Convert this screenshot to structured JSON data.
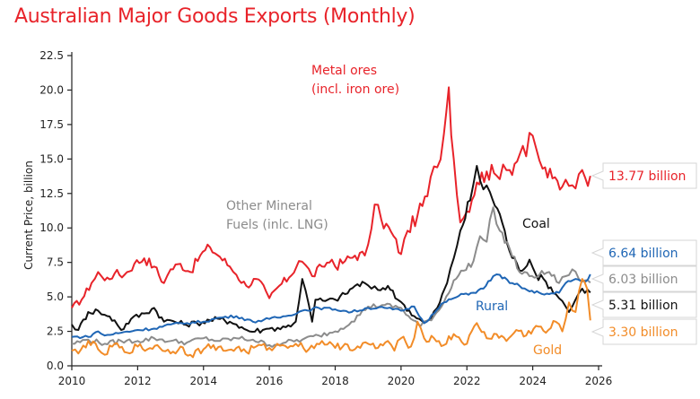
{
  "chart_data": {
    "type": "line",
    "title": "Australian Major Goods Exports (Monthly)",
    "xlabel": "",
    "ylabel": "Current Price, billion",
    "xlim": [
      2010,
      2026
    ],
    "ylim": [
      0,
      22.5
    ],
    "x_ticks": [
      "2010",
      "2012",
      "2014",
      "2016",
      "2018",
      "2020",
      "2022",
      "2024",
      "2026"
    ],
    "y_ticks": [
      "0.0",
      "2.5",
      "5.0",
      "7.5",
      "10.0",
      "12.5",
      "15.0",
      "17.5",
      "20.0",
      "22.5"
    ],
    "grid": false,
    "legend": "none (inline annotations)",
    "series": [
      {
        "name": "Metal ores (incl. iron ore)",
        "color": "#e8232a",
        "end_value_label": "13.77 billion",
        "points": [
          [
            2010.0,
            4.2
          ],
          [
            2010.3,
            4.8
          ],
          [
            2010.6,
            6.0
          ],
          [
            2010.8,
            6.8
          ],
          [
            2011.0,
            6.2
          ],
          [
            2011.3,
            6.7
          ],
          [
            2011.6,
            6.6
          ],
          [
            2011.9,
            7.4
          ],
          [
            2012.2,
            7.8
          ],
          [
            2012.5,
            7.2
          ],
          [
            2012.8,
            6.0
          ],
          [
            2013.0,
            7.0
          ],
          [
            2013.3,
            7.4
          ],
          [
            2013.6,
            6.8
          ],
          [
            2013.9,
            8.0
          ],
          [
            2014.2,
            8.6
          ],
          [
            2014.5,
            7.9
          ],
          [
            2014.8,
            7.2
          ],
          [
            2015.0,
            6.6
          ],
          [
            2015.3,
            5.8
          ],
          [
            2015.6,
            6.3
          ],
          [
            2015.9,
            5.4
          ],
          [
            2016.0,
            4.9
          ],
          [
            2016.3,
            5.8
          ],
          [
            2016.6,
            6.4
          ],
          [
            2016.9,
            7.6
          ],
          [
            2017.1,
            7.3
          ],
          [
            2017.3,
            6.5
          ],
          [
            2017.6,
            7.2
          ],
          [
            2017.9,
            7.7
          ],
          [
            2018.0,
            7.2
          ],
          [
            2018.3,
            7.6
          ],
          [
            2018.6,
            8.0
          ],
          [
            2018.9,
            8.0
          ],
          [
            2019.0,
            8.8
          ],
          [
            2019.2,
            11.7
          ],
          [
            2019.4,
            10.6
          ],
          [
            2019.7,
            9.7
          ],
          [
            2020.0,
            8.1
          ],
          [
            2020.2,
            9.8
          ],
          [
            2020.5,
            10.9
          ],
          [
            2020.8,
            12.3
          ],
          [
            2020.9,
            13.7
          ],
          [
            2021.1,
            14.4
          ],
          [
            2021.3,
            16.8
          ],
          [
            2021.45,
            20.2
          ],
          [
            2021.6,
            15.0
          ],
          [
            2021.8,
            10.4
          ],
          [
            2022.0,
            11.2
          ],
          [
            2022.3,
            13.3
          ],
          [
            2022.6,
            14.1
          ],
          [
            2022.9,
            13.8
          ],
          [
            2023.1,
            14.6
          ],
          [
            2023.3,
            14.2
          ],
          [
            2023.6,
            15.3
          ],
          [
            2023.8,
            15.2
          ],
          [
            2023.9,
            16.9
          ],
          [
            2024.1,
            15.8
          ],
          [
            2024.3,
            14.3
          ],
          [
            2024.6,
            13.6
          ],
          [
            2024.9,
            13.0
          ],
          [
            2025.0,
            13.5
          ],
          [
            2025.2,
            13.1
          ],
          [
            2025.4,
            13.9
          ],
          [
            2025.6,
            13.6
          ],
          [
            2025.75,
            13.77
          ]
        ]
      },
      {
        "name": "Coal",
        "color": "#111111",
        "end_value_label": "5.31 billion",
        "points": [
          [
            2010.0,
            3.0
          ],
          [
            2010.2,
            2.6
          ],
          [
            2010.5,
            3.9
          ],
          [
            2010.8,
            4.0
          ],
          [
            2011.0,
            3.7
          ],
          [
            2011.3,
            3.3
          ],
          [
            2011.5,
            2.6
          ],
          [
            2011.8,
            3.4
          ],
          [
            2012.2,
            3.8
          ],
          [
            2012.5,
            4.2
          ],
          [
            2012.8,
            3.2
          ],
          [
            2013.0,
            3.3
          ],
          [
            2013.4,
            3.0
          ],
          [
            2013.8,
            3.1
          ],
          [
            2014.2,
            3.3
          ],
          [
            2014.5,
            3.4
          ],
          [
            2014.8,
            3.2
          ],
          [
            2015.0,
            3.0
          ],
          [
            2015.4,
            2.5
          ],
          [
            2015.8,
            2.6
          ],
          [
            2016.0,
            2.7
          ],
          [
            2016.5,
            2.8
          ],
          [
            2016.8,
            3.2
          ],
          [
            2017.0,
            6.3
          ],
          [
            2017.2,
            4.4
          ],
          [
            2017.3,
            3.2
          ],
          [
            2017.4,
            4.8
          ],
          [
            2017.7,
            4.7
          ],
          [
            2018.0,
            4.8
          ],
          [
            2018.3,
            5.2
          ],
          [
            2018.6,
            5.8
          ],
          [
            2018.9,
            6.0
          ],
          [
            2019.1,
            5.6
          ],
          [
            2019.3,
            5.5
          ],
          [
            2019.6,
            5.8
          ],
          [
            2019.9,
            4.8
          ],
          [
            2020.1,
            4.4
          ],
          [
            2020.4,
            3.6
          ],
          [
            2020.7,
            3.1
          ],
          [
            2020.9,
            3.4
          ],
          [
            2021.1,
            4.2
          ],
          [
            2021.4,
            6.0
          ],
          [
            2021.6,
            7.8
          ],
          [
            2021.8,
            9.8
          ],
          [
            2022.1,
            12.0
          ],
          [
            2022.3,
            14.5
          ],
          [
            2022.5,
            12.8
          ],
          [
            2022.7,
            12.6
          ],
          [
            2023.0,
            11.0
          ],
          [
            2023.3,
            8.3
          ],
          [
            2023.6,
            6.9
          ],
          [
            2023.9,
            7.7
          ],
          [
            2024.1,
            6.6
          ],
          [
            2024.4,
            6.1
          ],
          [
            2024.7,
            5.2
          ],
          [
            2024.9,
            4.7
          ],
          [
            2025.1,
            3.9
          ],
          [
            2025.3,
            4.8
          ],
          [
            2025.5,
            5.6
          ],
          [
            2025.75,
            5.31
          ]
        ]
      },
      {
        "name": "Other Mineral Fuels (inlc. LNG)",
        "color": "#8c8c8c",
        "end_value_label": "6.03 billion",
        "points": [
          [
            2010.0,
            1.6
          ],
          [
            2010.5,
            1.9
          ],
          [
            2011.0,
            1.6
          ],
          [
            2011.5,
            1.8
          ],
          [
            2012.0,
            1.8
          ],
          [
            2012.5,
            2.0
          ],
          [
            2013.0,
            1.8
          ],
          [
            2013.5,
            1.7
          ],
          [
            2014.0,
            2.0
          ],
          [
            2014.5,
            1.8
          ],
          [
            2015.0,
            2.0
          ],
          [
            2015.5,
            1.9
          ],
          [
            2016.0,
            1.5
          ],
          [
            2016.5,
            1.7
          ],
          [
            2017.0,
            1.9
          ],
          [
            2017.5,
            2.2
          ],
          [
            2018.0,
            2.5
          ],
          [
            2018.5,
            3.2
          ],
          [
            2019.0,
            4.3
          ],
          [
            2019.5,
            4.4
          ],
          [
            2020.0,
            4.2
          ],
          [
            2020.3,
            3.4
          ],
          [
            2020.6,
            2.9
          ],
          [
            2021.0,
            3.6
          ],
          [
            2021.3,
            4.6
          ],
          [
            2021.6,
            6.2
          ],
          [
            2021.9,
            6.9
          ],
          [
            2022.2,
            7.6
          ],
          [
            2022.4,
            9.4
          ],
          [
            2022.6,
            9.0
          ],
          [
            2022.8,
            11.5
          ],
          [
            2023.0,
            9.8
          ],
          [
            2023.3,
            8.5
          ],
          [
            2023.6,
            6.8
          ],
          [
            2023.9,
            6.5
          ],
          [
            2024.2,
            6.6
          ],
          [
            2024.5,
            6.8
          ],
          [
            2024.8,
            6.0
          ],
          [
            2025.0,
            6.5
          ],
          [
            2025.2,
            7.0
          ],
          [
            2025.4,
            6.3
          ],
          [
            2025.75,
            6.03
          ]
        ]
      },
      {
        "name": "Rural",
        "color": "#1f66b5",
        "end_value_label": "6.64 billion",
        "points": [
          [
            2010.0,
            2.1
          ],
          [
            2010.5,
            2.1
          ],
          [
            2010.8,
            2.5
          ],
          [
            2011.0,
            2.2
          ],
          [
            2011.5,
            2.4
          ],
          [
            2012.0,
            2.6
          ],
          [
            2012.5,
            2.7
          ],
          [
            2013.0,
            3.0
          ],
          [
            2013.5,
            3.1
          ],
          [
            2014.0,
            3.2
          ],
          [
            2014.5,
            3.5
          ],
          [
            2015.0,
            3.6
          ],
          [
            2015.5,
            3.2
          ],
          [
            2016.0,
            3.4
          ],
          [
            2016.5,
            3.6
          ],
          [
            2017.0,
            4.0
          ],
          [
            2017.5,
            4.2
          ],
          [
            2018.0,
            4.1
          ],
          [
            2018.5,
            3.9
          ],
          [
            2019.0,
            4.2
          ],
          [
            2019.5,
            4.2
          ],
          [
            2020.0,
            4.0
          ],
          [
            2020.4,
            4.3
          ],
          [
            2020.7,
            3.1
          ],
          [
            2021.0,
            3.8
          ],
          [
            2021.3,
            4.6
          ],
          [
            2021.6,
            4.9
          ],
          [
            2021.9,
            5.2
          ],
          [
            2022.2,
            5.3
          ],
          [
            2022.5,
            5.6
          ],
          [
            2022.8,
            6.5
          ],
          [
            2023.0,
            6.6
          ],
          [
            2023.3,
            6.0
          ],
          [
            2023.6,
            5.8
          ],
          [
            2023.9,
            5.4
          ],
          [
            2024.2,
            5.3
          ],
          [
            2024.5,
            5.2
          ],
          [
            2024.8,
            5.3
          ],
          [
            2025.0,
            6.0
          ],
          [
            2025.3,
            6.3
          ],
          [
            2025.6,
            6.1
          ],
          [
            2025.75,
            6.64
          ]
        ]
      },
      {
        "name": "Gold",
        "color": "#f28c28",
        "end_value_label": "3.30 billion",
        "points": [
          [
            2010.0,
            1.1
          ],
          [
            2010.2,
            0.9
          ],
          [
            2010.5,
            1.8
          ],
          [
            2010.8,
            1.2
          ],
          [
            2011.0,
            0.8
          ],
          [
            2011.3,
            1.6
          ],
          [
            2011.6,
            1.0
          ],
          [
            2012.0,
            1.4
          ],
          [
            2012.3,
            1.2
          ],
          [
            2012.6,
            1.5
          ],
          [
            2013.0,
            0.9
          ],
          [
            2013.3,
            1.4
          ],
          [
            2013.6,
            0.8
          ],
          [
            2014.0,
            1.2
          ],
          [
            2014.3,
            1.5
          ],
          [
            2014.6,
            1.1
          ],
          [
            2015.0,
            1.3
          ],
          [
            2015.3,
            1.0
          ],
          [
            2015.6,
            1.4
          ],
          [
            2016.0,
            1.3
          ],
          [
            2016.4,
            1.5
          ],
          [
            2016.8,
            1.6
          ],
          [
            2017.2,
            1.2
          ],
          [
            2017.6,
            1.8
          ],
          [
            2018.0,
            1.3
          ],
          [
            2018.3,
            1.6
          ],
          [
            2018.6,
            1.2
          ],
          [
            2019.0,
            1.6
          ],
          [
            2019.3,
            1.3
          ],
          [
            2019.6,
            1.8
          ],
          [
            2019.8,
            1.1
          ],
          [
            2020.0,
            2.0
          ],
          [
            2020.3,
            1.4
          ],
          [
            2020.5,
            3.2
          ],
          [
            2020.7,
            2.0
          ],
          [
            2021.0,
            2.0
          ],
          [
            2021.3,
            1.5
          ],
          [
            2021.6,
            2.3
          ],
          [
            2022.0,
            1.6
          ],
          [
            2022.3,
            3.1
          ],
          [
            2022.6,
            2.0
          ],
          [
            2022.9,
            2.3
          ],
          [
            2023.2,
            1.8
          ],
          [
            2023.5,
            2.6
          ],
          [
            2023.8,
            2.2
          ],
          [
            2024.1,
            2.9
          ],
          [
            2024.4,
            2.4
          ],
          [
            2024.7,
            3.2
          ],
          [
            2024.9,
            2.5
          ],
          [
            2025.1,
            4.6
          ],
          [
            2025.3,
            3.9
          ],
          [
            2025.5,
            6.3
          ],
          [
            2025.65,
            5.6
          ],
          [
            2025.75,
            3.3
          ]
        ]
      }
    ],
    "annotations": [
      {
        "text_lines": [
          "Metal ores",
          "(incl. iron ore)"
        ],
        "color": "#e8232a"
      },
      {
        "text_lines": [
          "Other Mineral",
          "Fuels (inlc. LNG)"
        ],
        "color": "#8c8c8c"
      },
      {
        "text_lines": [
          "Coal"
        ],
        "color": "#111111"
      },
      {
        "text_lines": [
          "Rural"
        ],
        "color": "#1f66b5"
      },
      {
        "text_lines": [
          "Gold"
        ],
        "color": "#f28c28"
      }
    ]
  }
}
